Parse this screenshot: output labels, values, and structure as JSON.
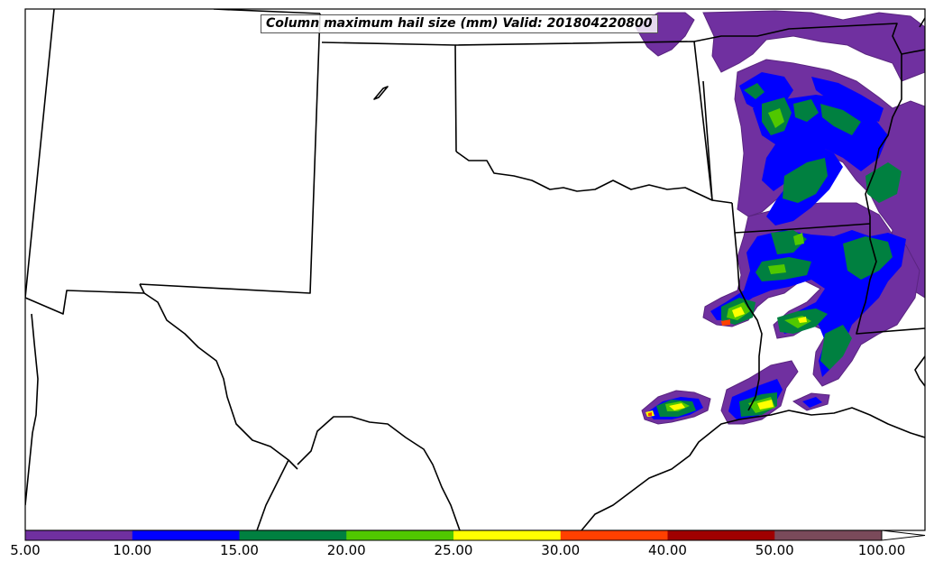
{
  "map": {
    "title": "Column maximum hail size (mm) Valid: 201804220800"
  },
  "colorbar": {
    "labels": [
      "5.00",
      "10.00",
      "15.00",
      "20.00",
      "25.00",
      "30.00",
      "40.00",
      "50.00",
      "100.00"
    ],
    "colors": [
      "#7030a0",
      "#0000ff",
      "#008040",
      "#50c800",
      "#ffff00",
      "#ff4000",
      "#a00000",
      "#7a4a5a"
    ],
    "extend_color": "#ffffff"
  }
}
